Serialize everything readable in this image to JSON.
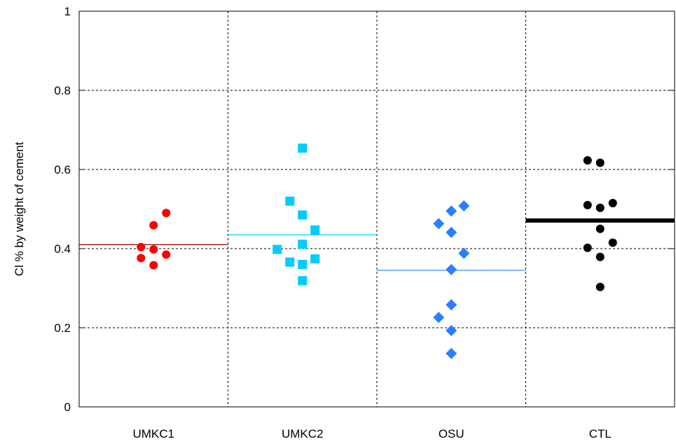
{
  "chart_data": {
    "type": "scatter",
    "ylabel": "Cl % by weight of cement",
    "xlabel": "",
    "title": "",
    "ylim": [
      0,
      1
    ],
    "yticks": [
      0,
      0.2,
      0.4,
      0.6,
      0.8,
      1
    ],
    "ytick_labels": [
      "0",
      "0.2",
      "0.4",
      "0.6",
      "0.8",
      "1"
    ],
    "categories": [
      "UMKC1",
      "UMKC2",
      "OSU",
      "CTL"
    ],
    "grid": true,
    "series": [
      {
        "category": "UMKC1",
        "marker": "circle",
        "color": "#ff0000",
        "mean": 0.41,
        "points": [
          {
            "dx": 1,
            "y": 0.49
          },
          {
            "dx": 0,
            "y": 0.459
          },
          {
            "dx": -1,
            "y": 0.404
          },
          {
            "dx": 0,
            "y": 0.398
          },
          {
            "dx": 1,
            "y": 0.385
          },
          {
            "dx": -1,
            "y": 0.376
          },
          {
            "dx": 0,
            "y": 0.358
          }
        ]
      },
      {
        "category": "UMKC2",
        "marker": "square",
        "color": "#00ccff",
        "mean": 0.435,
        "points": [
          {
            "dx": 0,
            "y": 0.654
          },
          {
            "dx": -1,
            "y": 0.52
          },
          {
            "dx": 0,
            "y": 0.485
          },
          {
            "dx": 1,
            "y": 0.447
          },
          {
            "dx": 0,
            "y": 0.411
          },
          {
            "dx": -2,
            "y": 0.398
          },
          {
            "dx": 1,
            "y": 0.374
          },
          {
            "dx": -1,
            "y": 0.366
          },
          {
            "dx": 0,
            "y": 0.36
          },
          {
            "dx": 0,
            "y": 0.319
          }
        ]
      },
      {
        "category": "OSU",
        "marker": "diamond",
        "color": "#2a7fff",
        "mean": 0.345,
        "points": [
          {
            "dx": 1,
            "y": 0.508
          },
          {
            "dx": 0,
            "y": 0.495
          },
          {
            "dx": -1,
            "y": 0.463
          },
          {
            "dx": 0,
            "y": 0.441
          },
          {
            "dx": 1,
            "y": 0.388
          },
          {
            "dx": 0,
            "y": 0.347
          },
          {
            "dx": 0,
            "y": 0.258
          },
          {
            "dx": -1,
            "y": 0.226
          },
          {
            "dx": 0,
            "y": 0.193
          },
          {
            "dx": 0,
            "y": 0.135
          }
        ]
      },
      {
        "category": "CTL",
        "marker": "circle",
        "color": "#000000",
        "mean": 0.471,
        "points": [
          {
            "dx": -1,
            "y": 0.623
          },
          {
            "dx": 0,
            "y": 0.617
          },
          {
            "dx": 1,
            "y": 0.515
          },
          {
            "dx": -1,
            "y": 0.51
          },
          {
            "dx": 0,
            "y": 0.503
          },
          {
            "dx": 0,
            "y": 0.45
          },
          {
            "dx": 1,
            "y": 0.415
          },
          {
            "dx": -1,
            "y": 0.402
          },
          {
            "dx": 0,
            "y": 0.379
          },
          {
            "dx": 0,
            "y": 0.303
          }
        ]
      }
    ]
  }
}
